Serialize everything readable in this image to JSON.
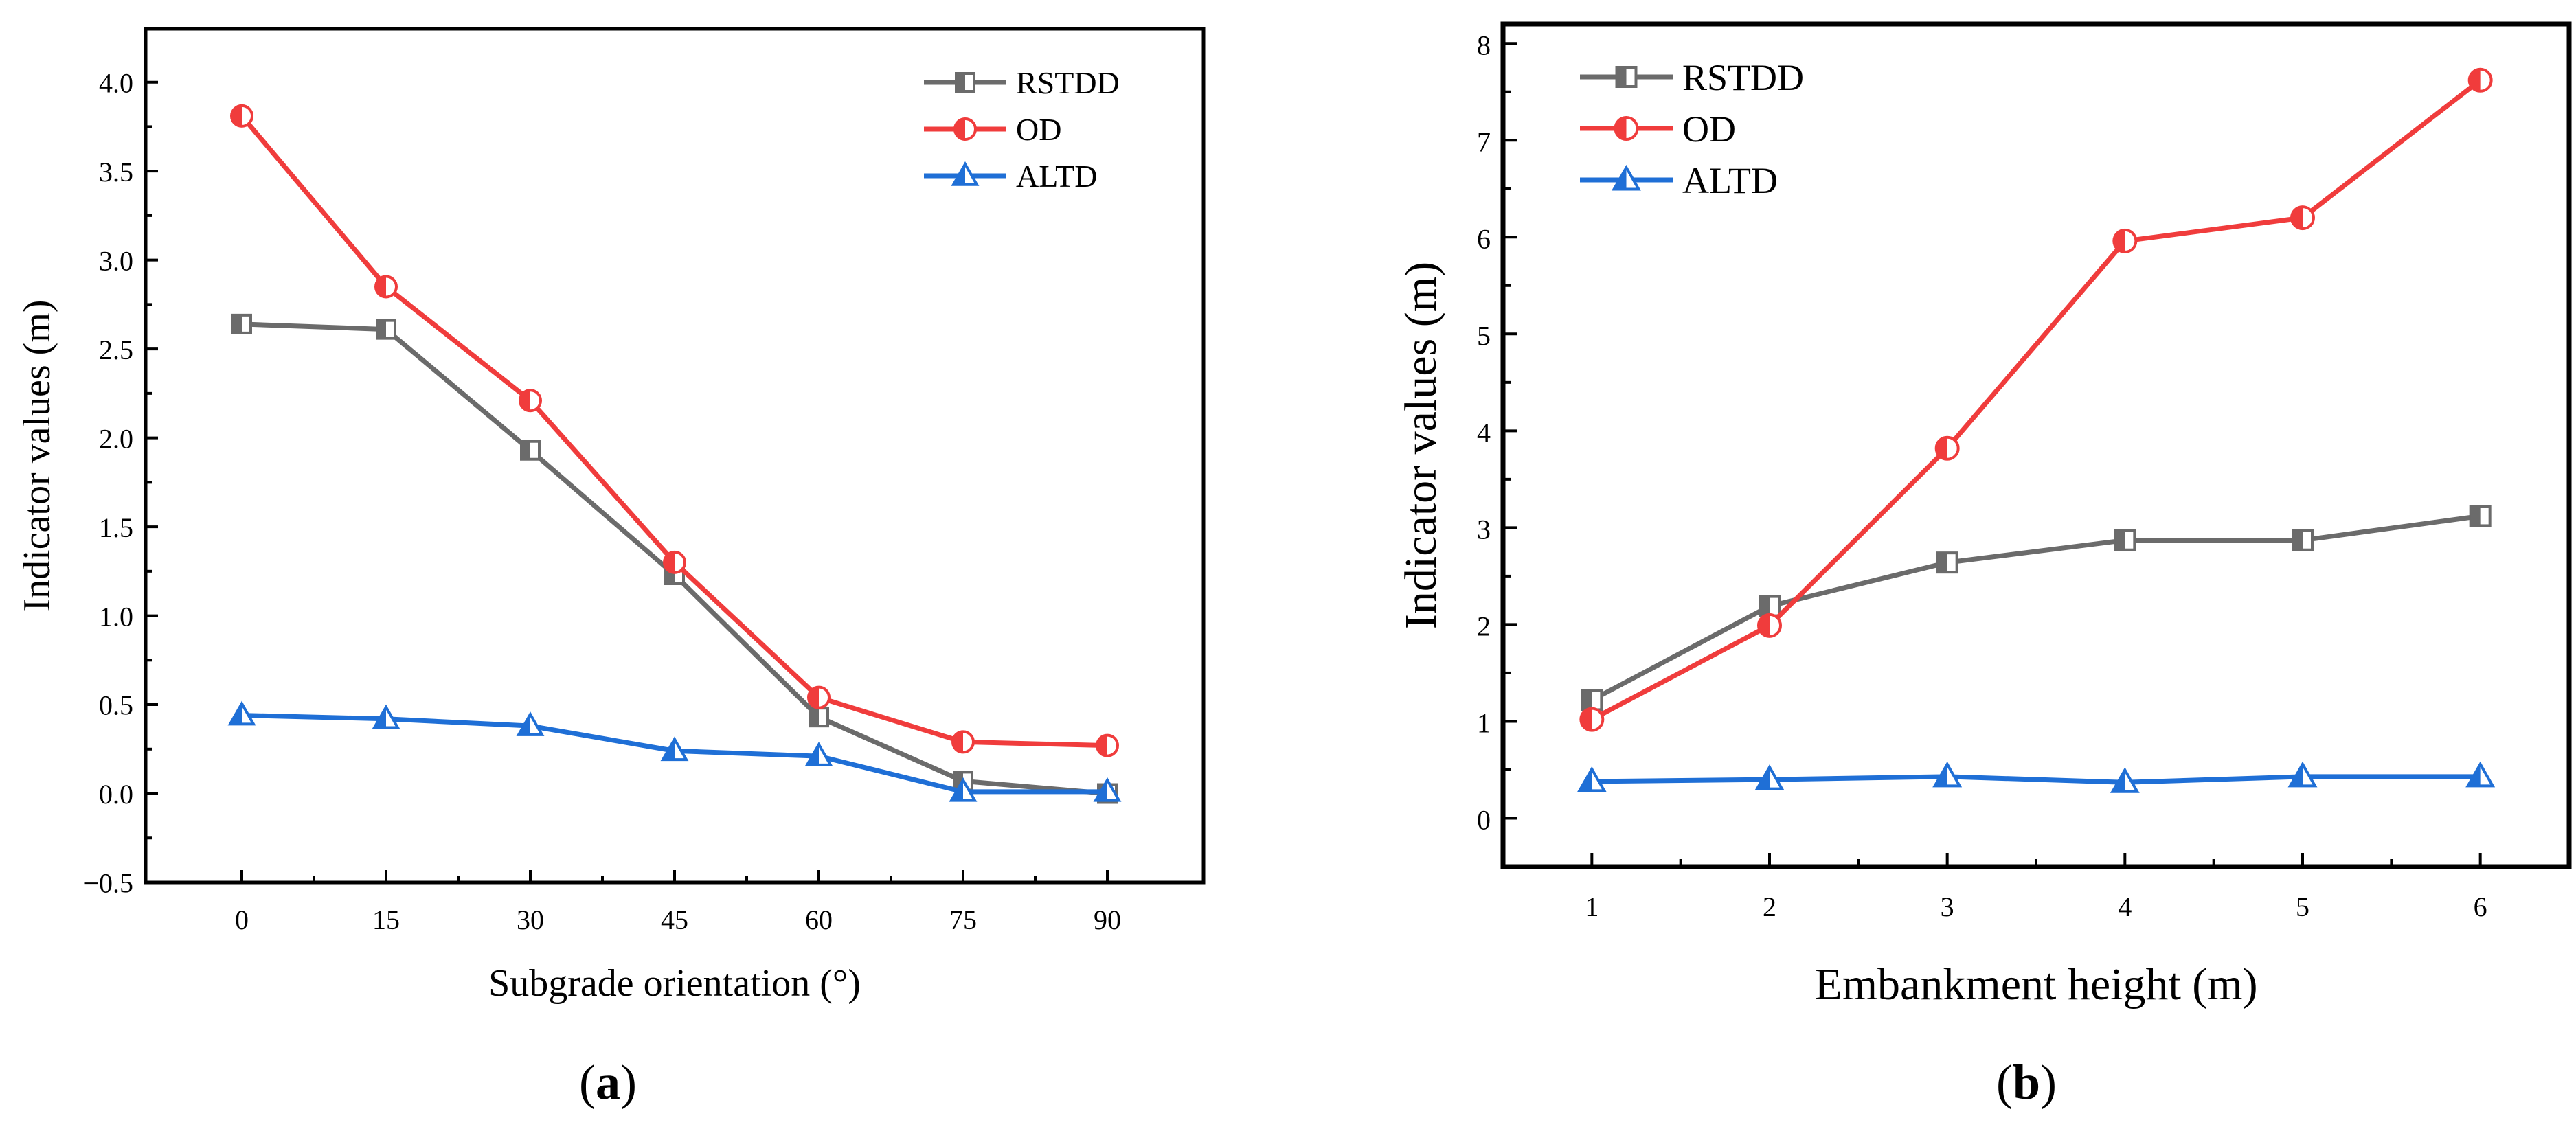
{
  "chart_data": [
    {
      "type": "line",
      "panel": "a",
      "panel_label": "a",
      "xlabel": "Subgrade orientation (°)",
      "ylabel": "Indicator values (m)",
      "x": [
        0,
        15,
        30,
        45,
        60,
        75,
        90
      ],
      "x_tick_labels": [
        "0",
        "15",
        "30",
        "45",
        "60",
        "75",
        "90"
      ],
      "xlim": [
        -10,
        100
      ],
      "ylim": [
        -0.5,
        4.3
      ],
      "y_ticks": [
        -0.5,
        0.0,
        0.5,
        1.0,
        1.5,
        2.0,
        2.5,
        3.0,
        3.5,
        4.0
      ],
      "y_tick_labels": [
        "−0.5",
        "0.0",
        "0.5",
        "1.0",
        "1.5",
        "2.0",
        "2.5",
        "3.0",
        "3.5",
        "4.0"
      ],
      "legend_position": "top-right",
      "series": [
        {
          "name": "RSTDD",
          "color": "#6b6b6b",
          "marker": "square",
          "values": [
            2.64,
            2.61,
            1.93,
            1.23,
            0.43,
            0.07,
            0.0
          ]
        },
        {
          "name": "OD",
          "color": "#f03c3c",
          "marker": "circle",
          "values": [
            3.81,
            2.85,
            2.21,
            1.3,
            0.54,
            0.29,
            0.27
          ]
        },
        {
          "name": "ALTD",
          "color": "#1f6fd6",
          "marker": "triangle",
          "values": [
            0.44,
            0.42,
            0.38,
            0.24,
            0.21,
            0.01,
            0.01
          ]
        }
      ]
    },
    {
      "type": "line",
      "panel": "b",
      "panel_label": "b",
      "xlabel": "Embankment height (m)",
      "ylabel": "Indicator values (m)",
      "x": [
        1,
        2,
        3,
        4,
        5,
        6
      ],
      "x_tick_labels": [
        "1",
        "2",
        "3",
        "4",
        "5",
        "6"
      ],
      "xlim": [
        0.5,
        6.5
      ],
      "ylim": [
        -0.5,
        8.2
      ],
      "y_ticks": [
        0,
        1,
        2,
        3,
        4,
        5,
        6,
        7,
        8
      ],
      "y_tick_labels": [
        "0",
        "1",
        "2",
        "3",
        "4",
        "5",
        "6",
        "7",
        "8"
      ],
      "legend_position": "top-left",
      "series": [
        {
          "name": "RSTDD",
          "color": "#6b6b6b",
          "marker": "square",
          "values": [
            1.22,
            2.19,
            2.64,
            2.87,
            2.87,
            3.12
          ]
        },
        {
          "name": "OD",
          "color": "#f03c3c",
          "marker": "circle",
          "values": [
            1.02,
            1.99,
            3.82,
            5.96,
            6.2,
            7.62
          ]
        },
        {
          "name": "ALTD",
          "color": "#1f6fd6",
          "marker": "triangle",
          "values": [
            0.38,
            0.4,
            0.43,
            0.37,
            0.43,
            0.43
          ]
        }
      ]
    }
  ]
}
